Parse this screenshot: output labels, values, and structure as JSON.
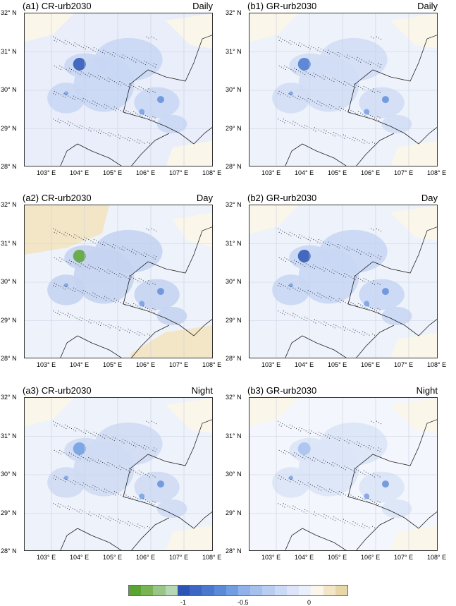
{
  "panels": [
    {
      "id": "a1",
      "title": "(a1) CR-urb2030",
      "period": "Daily"
    },
    {
      "id": "b1",
      "title": "(b1) GR-urb2030",
      "period": "Daily"
    },
    {
      "id": "a2",
      "title": "(a2) CR-urb2030",
      "period": "Day"
    },
    {
      "id": "b2",
      "title": "(b2) GR-urb2030",
      "period": "Day"
    },
    {
      "id": "a3",
      "title": "(a3) CR-urb2030",
      "period": "Night"
    },
    {
      "id": "b3",
      "title": "(b3) GR-urb2030",
      "period": "Night"
    }
  ],
  "lat_labels": [
    "32° N",
    "31° N",
    "30° N",
    "29° N",
    "28° N"
  ],
  "lon_labels": [
    "103° E",
    "104° E",
    "105° E",
    "106° E",
    "107° E",
    "108° E"
  ],
  "colorbar": {
    "colors": [
      "#5aa532",
      "#78b552",
      "#99c686",
      "#b6d6b6",
      "#2d54b5",
      "#3d66c4",
      "#4a78cf",
      "#5b8ad8",
      "#6f9ee2",
      "#8fb2ea",
      "#a6c0ee",
      "#b9cdf1",
      "#cad9f4",
      "#dbe5f7",
      "#eaf0fa",
      "#fbf6ea",
      "#f2e6c6",
      "#e6d6a8"
    ],
    "labels": [
      "-1",
      "-0.5",
      "0"
    ]
  }
}
